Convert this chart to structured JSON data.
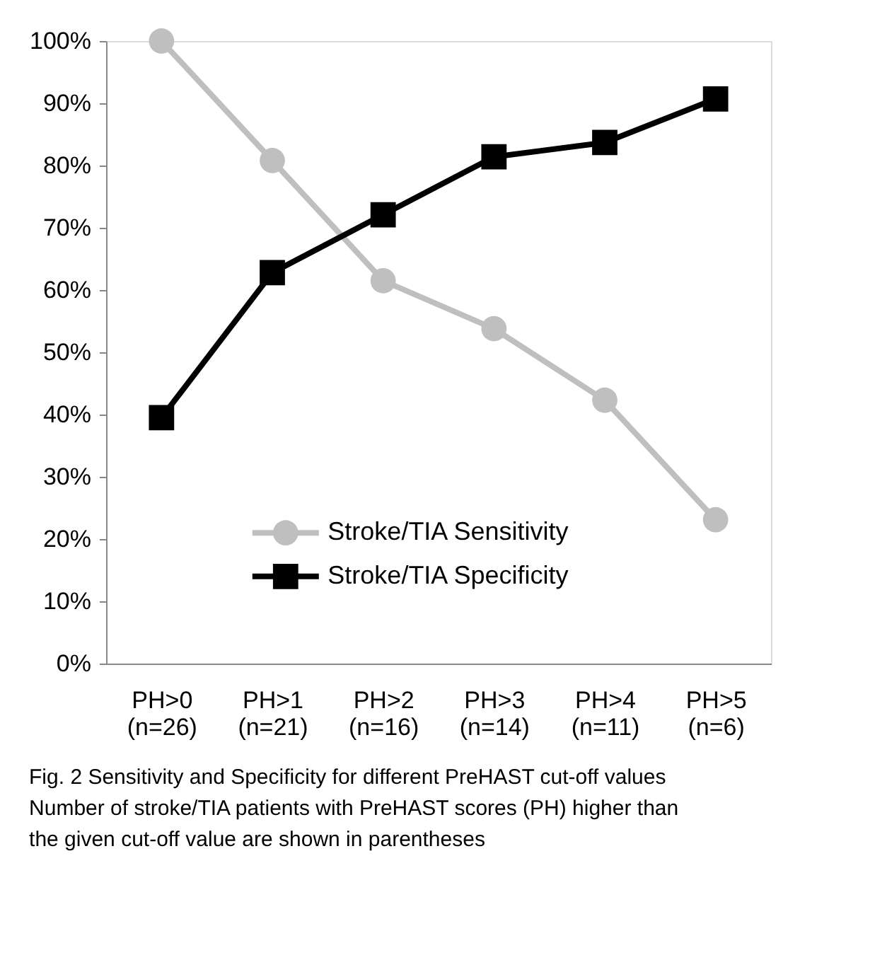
{
  "chart_data": {
    "type": "line",
    "categories": [
      "PH>0\n(n=26)",
      "PH>1\n(n=21)",
      "PH>2\n(n=16)",
      "PH>3\n(n=14)",
      "PH>4\n(n=11)",
      "PH>5\n(n=6)"
    ],
    "series": [
      {
        "name": "Stroke/TIA Sensitivity",
        "color": "#bfbfbf",
        "marker": "circle",
        "values": [
          100,
          80.8,
          61.5,
          53.8,
          42.3,
          23.1
        ]
      },
      {
        "name": "Stroke/TIA Specificity",
        "color": "#000000",
        "marker": "square",
        "values": [
          39.5,
          62.8,
          72.1,
          81.4,
          83.7,
          90.7
        ]
      }
    ],
    "ylim": [
      0,
      100
    ],
    "yticks": [
      {
        "value": 0,
        "label": "0%"
      },
      {
        "value": 10,
        "label": "10%"
      },
      {
        "value": 20,
        "label": "20%"
      },
      {
        "value": 30,
        "label": "30%"
      },
      {
        "value": 40,
        "label": "40%"
      },
      {
        "value": 50,
        "label": "50%"
      },
      {
        "value": 60,
        "label": "60%"
      },
      {
        "value": 70,
        "label": "70%"
      },
      {
        "value": 80,
        "label": "80%"
      },
      {
        "value": 90,
        "label": "90%"
      },
      {
        "value": 100,
        "label": "100%"
      }
    ],
    "grid": false,
    "legend": "bottom",
    "line_style": "solid",
    "annotations": [
      "Fig. 2 Sensitivity and Specificity for different PreHAST cut-off values",
      "Number of stroke/TIA patients with PreHAST scores (PH) higher than",
      "the given cut-off value are shown in parentheses"
    ]
  }
}
